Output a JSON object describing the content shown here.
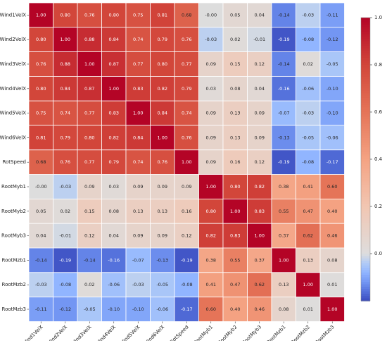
{
  "chart_data": {
    "type": "heatmap",
    "title": "",
    "xlabel": "",
    "ylabel": "",
    "labels": [
      "Wind1VelX",
      "Wind2VelX",
      "Wind3VelX",
      "Wind4VelX",
      "Wind5VelX",
      "Wind6VelX",
      "RotSpeed",
      "RootMyb1",
      "RootMyb2",
      "RootMyb3",
      "RootMzb1",
      "RootMzb2",
      "RootMzb3"
    ],
    "matrix": [
      [
        1.0,
        0.8,
        0.76,
        0.8,
        0.75,
        0.81,
        0.68,
        -0.0,
        0.05,
        0.04,
        -0.14,
        -0.03,
        -0.11
      ],
      [
        0.8,
        1.0,
        0.88,
        0.84,
        0.74,
        0.79,
        0.76,
        -0.03,
        0.02,
        -0.01,
        -0.19,
        -0.08,
        -0.12
      ],
      [
        0.76,
        0.88,
        1.0,
        0.87,
        0.77,
        0.8,
        0.77,
        0.09,
        0.15,
        0.12,
        -0.14,
        0.02,
        -0.05
      ],
      [
        0.8,
        0.84,
        0.87,
        1.0,
        0.83,
        0.82,
        0.79,
        0.03,
        0.08,
        0.04,
        -0.16,
        -0.06,
        -0.1
      ],
      [
        0.75,
        0.74,
        0.77,
        0.83,
        1.0,
        0.84,
        0.74,
        0.09,
        0.13,
        0.09,
        -0.07,
        -0.03,
        -0.1
      ],
      [
        0.81,
        0.79,
        0.8,
        0.82,
        0.84,
        1.0,
        0.76,
        0.09,
        0.13,
        0.09,
        -0.13,
        -0.05,
        -0.06
      ],
      [
        0.68,
        0.76,
        0.77,
        0.79,
        0.74,
        0.76,
        1.0,
        0.09,
        0.16,
        0.12,
        -0.19,
        -0.08,
        -0.17
      ],
      [
        -0.0,
        -0.03,
        0.09,
        0.03,
        0.09,
        0.09,
        0.09,
        1.0,
        0.8,
        0.82,
        0.38,
        0.41,
        0.6
      ],
      [
        0.05,
        0.02,
        0.15,
        0.08,
        0.13,
        0.13,
        0.16,
        0.8,
        1.0,
        0.83,
        0.55,
        0.47,
        0.4
      ],
      [
        0.04,
        -0.01,
        0.12,
        0.04,
        0.09,
        0.09,
        0.12,
        0.82,
        0.83,
        1.0,
        0.37,
        0.62,
        0.46
      ],
      [
        -0.14,
        -0.19,
        -0.14,
        -0.16,
        -0.07,
        -0.13,
        -0.19,
        0.38,
        0.55,
        0.37,
        1.0,
        0.13,
        0.08
      ],
      [
        -0.03,
        -0.08,
        0.02,
        -0.06,
        -0.03,
        -0.05,
        -0.08,
        0.41,
        0.47,
        0.62,
        0.13,
        1.0,
        0.01
      ],
      [
        -0.11,
        -0.12,
        -0.05,
        -0.1,
        -0.1,
        -0.06,
        -0.17,
        0.6,
        0.4,
        0.46,
        0.08,
        0.01,
        1.0
      ]
    ],
    "colorscale": "coolwarm",
    "vmin": -0.2,
    "vmax": 1.0,
    "center": 0.0,
    "colorbar_ticks": [
      1.0,
      0.8,
      0.6,
      0.4,
      0.2,
      0.0
    ],
    "colorbar_tick_labels": [
      "1.0",
      "0.8",
      "0.6",
      "0.4",
      "0.2",
      "0.0"
    ],
    "annotation_format": "0.00",
    "grid_lines": true,
    "legend": "colorbar-right"
  }
}
